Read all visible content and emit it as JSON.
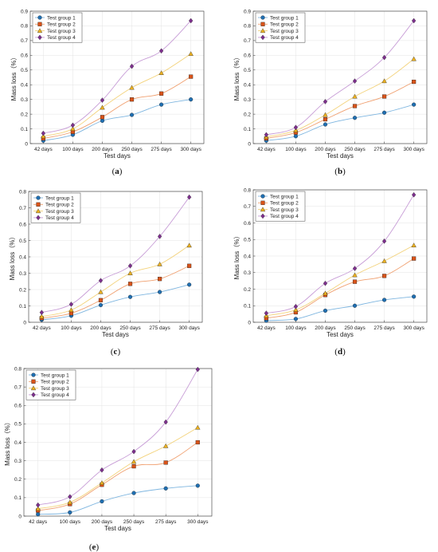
{
  "colors": {
    "Test group 1": "#1f6fb2",
    "Test group 2": "#d95319",
    "Test group 3": "#edb120",
    "Test group 4": "#7e2f8e"
  },
  "series_styles": {
    "line_colors": [
      "#7fb6e0",
      "#f0a070",
      "#f3d27a",
      "#c79cd6"
    ],
    "marker_fills": [
      "#1f6fb2",
      "#d95319",
      "#edb120",
      "#7e2f8e"
    ],
    "markers": [
      "circle",
      "square",
      "triangle",
      "diamond"
    ]
  },
  "chart_data": [
    {
      "label": "a",
      "type": "line",
      "categories": [
        "42 days",
        "100 days",
        "200 days",
        "250 days",
        "275 days",
        "300 days"
      ],
      "xlabel": "Test days",
      "ylabel": "Mass loss（%）",
      "ylim": [
        0,
        0.9
      ],
      "yticks": [
        0,
        0.1,
        0.2,
        0.3,
        0.4,
        0.5,
        0.6,
        0.7,
        0.8,
        0.9
      ],
      "grid": true,
      "legend": "top-left",
      "series": [
        {
          "name": "Test group 1",
          "values": [
            0.02,
            0.06,
            0.155,
            0.195,
            0.265,
            0.3
          ]
        },
        {
          "name": "Test group 2",
          "values": [
            0.035,
            0.08,
            0.18,
            0.3,
            0.34,
            0.455
          ]
        },
        {
          "name": "Test group 3",
          "values": [
            0.05,
            0.1,
            0.245,
            0.38,
            0.48,
            0.61
          ]
        },
        {
          "name": "Test group 4",
          "values": [
            0.07,
            0.125,
            0.295,
            0.525,
            0.63,
            0.835
          ]
        }
      ]
    },
    {
      "label": "b",
      "type": "line",
      "categories": [
        "42 days",
        "100 days",
        "200 days",
        "250 days",
        "275 days",
        "300 days"
      ],
      "xlabel": "Test days",
      "ylabel": "Mass loss（%）",
      "ylim": [
        0,
        0.9
      ],
      "yticks": [
        0,
        0.1,
        0.2,
        0.3,
        0.4,
        0.5,
        0.6,
        0.7,
        0.8,
        0.9
      ],
      "grid": true,
      "legend": "top-left",
      "series": [
        {
          "name": "Test group 1",
          "values": [
            0.02,
            0.05,
            0.13,
            0.175,
            0.21,
            0.265
          ]
        },
        {
          "name": "Test group 2",
          "values": [
            0.035,
            0.075,
            0.165,
            0.255,
            0.32,
            0.42
          ]
        },
        {
          "name": "Test group 3",
          "values": [
            0.045,
            0.09,
            0.195,
            0.32,
            0.425,
            0.575
          ]
        },
        {
          "name": "Test group 4",
          "values": [
            0.06,
            0.11,
            0.285,
            0.425,
            0.585,
            0.835
          ]
        }
      ]
    },
    {
      "label": "c",
      "type": "line",
      "categories": [
        "42 days",
        "100 days",
        "200 days",
        "250 days",
        "275 days",
        "300 days"
      ],
      "xlabel": "Test days",
      "ylabel": "Mass loss（%）",
      "ylim": [
        0,
        0.8
      ],
      "yticks": [
        0,
        0.1,
        0.2,
        0.3,
        0.4,
        0.5,
        0.6,
        0.7,
        0.8
      ],
      "grid": true,
      "legend": "top-left",
      "series": [
        {
          "name": "Test group 1",
          "values": [
            0.015,
            0.04,
            0.105,
            0.155,
            0.185,
            0.23
          ]
        },
        {
          "name": "Test group 2",
          "values": [
            0.025,
            0.055,
            0.135,
            0.235,
            0.265,
            0.345
          ]
        },
        {
          "name": "Test group 3",
          "values": [
            0.035,
            0.075,
            0.185,
            0.3,
            0.355,
            0.47
          ]
        },
        {
          "name": "Test group 4",
          "values": [
            0.06,
            0.11,
            0.255,
            0.345,
            0.525,
            0.765
          ]
        }
      ]
    },
    {
      "label": "d",
      "type": "line",
      "categories": [
        "42 days",
        "100 days",
        "200 days",
        "250 days",
        "275 days",
        "300 days"
      ],
      "xlabel": "Test days",
      "ylabel": "Mass loss（%）",
      "ylim": [
        0,
        0.8
      ],
      "yticks": [
        0,
        0.1,
        0.2,
        0.3,
        0.4,
        0.5,
        0.6,
        0.7,
        0.8
      ],
      "grid": true,
      "legend": "top-left",
      "series": [
        {
          "name": "Test group 1",
          "values": [
            0.01,
            0.02,
            0.07,
            0.1,
            0.135,
            0.155
          ]
        },
        {
          "name": "Test group 2",
          "values": [
            0.025,
            0.06,
            0.165,
            0.245,
            0.28,
            0.385
          ]
        },
        {
          "name": "Test group 3",
          "values": [
            0.04,
            0.075,
            0.175,
            0.285,
            0.37,
            0.465
          ]
        },
        {
          "name": "Test group 4",
          "values": [
            0.055,
            0.095,
            0.235,
            0.325,
            0.49,
            0.77
          ]
        }
      ]
    },
    {
      "label": "e",
      "type": "line",
      "categories": [
        "42 days",
        "100 days",
        "200 days",
        "250 days",
        "275 days",
        "300 days"
      ],
      "xlabel": "Test days",
      "ylabel": "Mass loss（%）",
      "ylim": [
        0,
        0.8
      ],
      "yticks": [
        0,
        0.1,
        0.2,
        0.3,
        0.4,
        0.5,
        0.6,
        0.7,
        0.8
      ],
      "grid": true,
      "legend": "top-left",
      "series": [
        {
          "name": "Test group 1",
          "values": [
            0.01,
            0.02,
            0.08,
            0.125,
            0.15,
            0.165
          ]
        },
        {
          "name": "Test group 2",
          "values": [
            0.03,
            0.065,
            0.17,
            0.27,
            0.29,
            0.4
          ]
        },
        {
          "name": "Test group 3",
          "values": [
            0.04,
            0.075,
            0.18,
            0.295,
            0.38,
            0.48
          ]
        },
        {
          "name": "Test group 4",
          "values": [
            0.06,
            0.105,
            0.25,
            0.35,
            0.51,
            0.795
          ]
        }
      ]
    }
  ]
}
